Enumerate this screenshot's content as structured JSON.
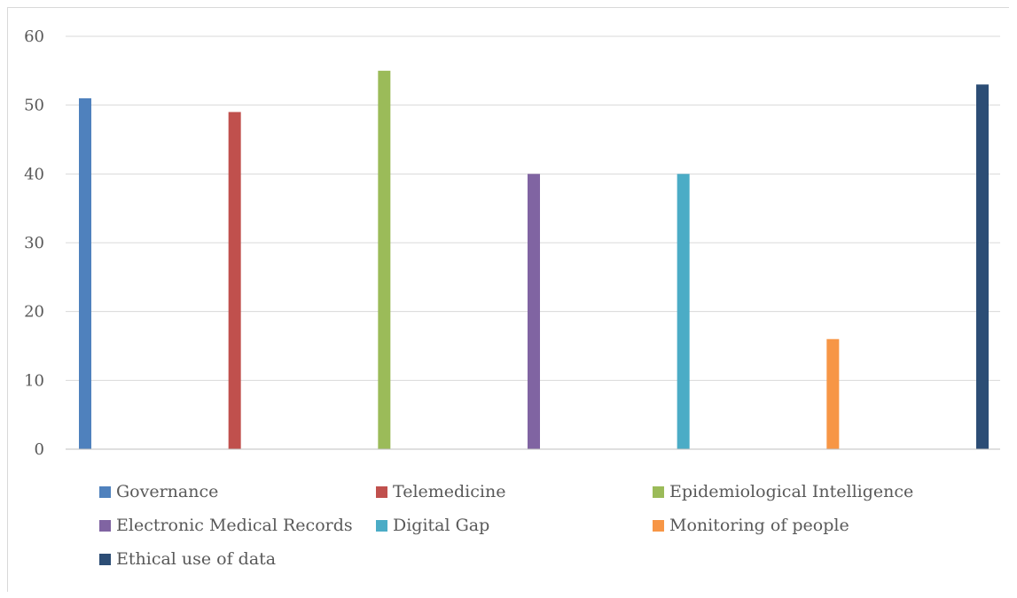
{
  "chart_data": {
    "type": "bar",
    "title": "",
    "xlabel": "",
    "ylabel": "",
    "ylim": [
      0,
      60
    ],
    "yticks": [
      "0",
      "10",
      "20",
      "30",
      "40",
      "50",
      "60"
    ],
    "grid": true,
    "legend_position": "bottom",
    "series": [
      {
        "name": "Governance",
        "value": 51,
        "color": "#4F81BD"
      },
      {
        "name": "Telemedicine",
        "value": 49,
        "color": "#C0504D"
      },
      {
        "name": "Epidemiological Intelligence",
        "value": 55,
        "color": "#9BBB59"
      },
      {
        "name": "Electronic Medical Records",
        "value": 40,
        "color": "#8064A2"
      },
      {
        "name": "Digital Gap",
        "value": 40,
        "color": "#4BACC6"
      },
      {
        "name": "Monitoring of people",
        "value": 16,
        "color": "#F79646"
      },
      {
        "name": "Ethical use of data",
        "value": 53,
        "color": "#2C4D75"
      }
    ]
  }
}
